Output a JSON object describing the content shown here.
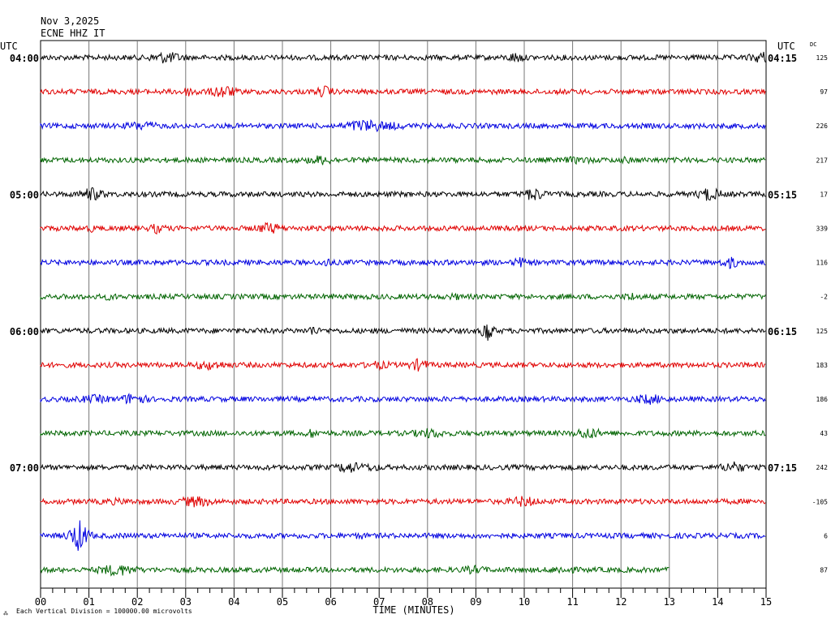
{
  "header": {
    "date": "Nov 3,2025",
    "station": "ECNE HHZ IT"
  },
  "footer": {
    "note": "Each Vertical Division = 100000.00 microvolts"
  },
  "chart_data": {
    "type": "line",
    "title": "ECNE HHZ IT",
    "date": "Nov 3,2025",
    "xlabel": "TIME (MINUTES)",
    "xlim": [
      0,
      15
    ],
    "x_ticks": [
      "00",
      "01",
      "02",
      "03",
      "04",
      "05",
      "06",
      "07",
      "08",
      "09",
      "10",
      "11",
      "12",
      "13",
      "14",
      "15"
    ],
    "left_axis_label": "UTC",
    "right_axis_label": "UTC",
    "right_column_header": "DC",
    "vertical_division_microvolts": 100000.0,
    "left_hour_labels": [
      "04:00",
      "05:00",
      "06:00",
      "07:00"
    ],
    "right_hour_labels": [
      "04:15",
      "05:15",
      "06:15",
      "07:15"
    ],
    "colors": [
      "#000000",
      "#e00000",
      "#0000e0",
      "#006400"
    ],
    "traces": [
      {
        "dc": "125",
        "end_minute": 15
      },
      {
        "dc": "97",
        "end_minute": 15
      },
      {
        "dc": "226",
        "end_minute": 15
      },
      {
        "dc": "217",
        "end_minute": 15
      },
      {
        "dc": "17",
        "end_minute": 15
      },
      {
        "dc": "339",
        "end_minute": 15
      },
      {
        "dc": "116",
        "end_minute": 15
      },
      {
        "dc": "-2",
        "end_minute": 15
      },
      {
        "dc": "125",
        "end_minute": 15
      },
      {
        "dc": "183",
        "end_minute": 15
      },
      {
        "dc": "186",
        "end_minute": 15
      },
      {
        "dc": "43",
        "end_minute": 15
      },
      {
        "dc": "242",
        "end_minute": 15
      },
      {
        "dc": "-105",
        "end_minute": 15
      },
      {
        "dc": "6",
        "end_minute": 15
      },
      {
        "dc": "87",
        "end_minute": 13
      }
    ]
  }
}
